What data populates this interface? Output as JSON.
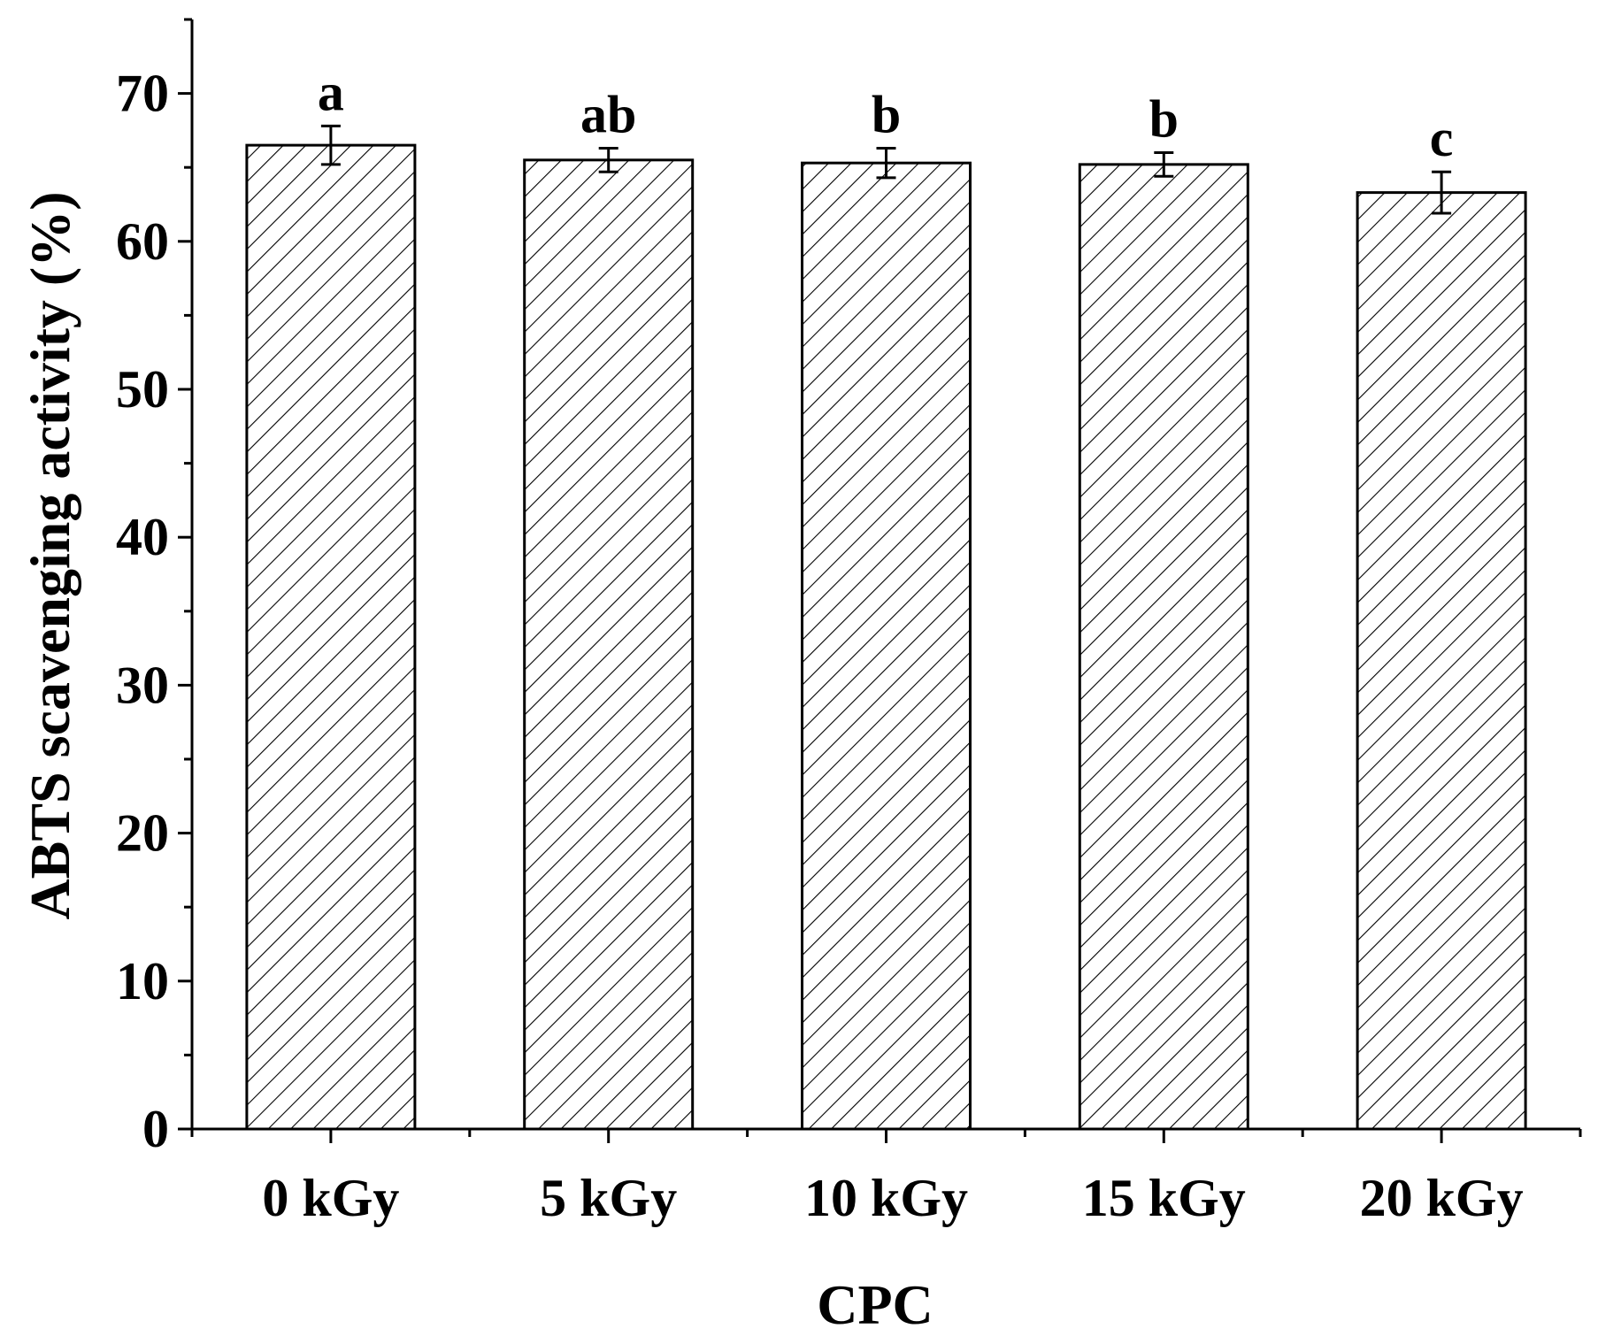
{
  "chart_data": {
    "type": "bar",
    "categories": [
      "0 kGy",
      "5 kGy",
      "10 kGy",
      "15 kGy",
      "20 kGy"
    ],
    "values": [
      66.5,
      65.5,
      65.3,
      65.2,
      63.3
    ],
    "errors": [
      1.3,
      0.8,
      1.0,
      0.8,
      1.4
    ],
    "significance_letters": [
      "a",
      "ab",
      "b",
      "b",
      "c"
    ],
    "xlabel": "CPC",
    "ylabel": "ABTS scavenging activity (%)",
    "ylim": [
      0,
      75
    ],
    "yticks": [
      0,
      10,
      20,
      30,
      40,
      50,
      60,
      70
    ],
    "bar_fill": "hatched",
    "colors": {
      "stroke": "#000000",
      "background": "#ffffff"
    },
    "grid": false,
    "legend": "none"
  }
}
